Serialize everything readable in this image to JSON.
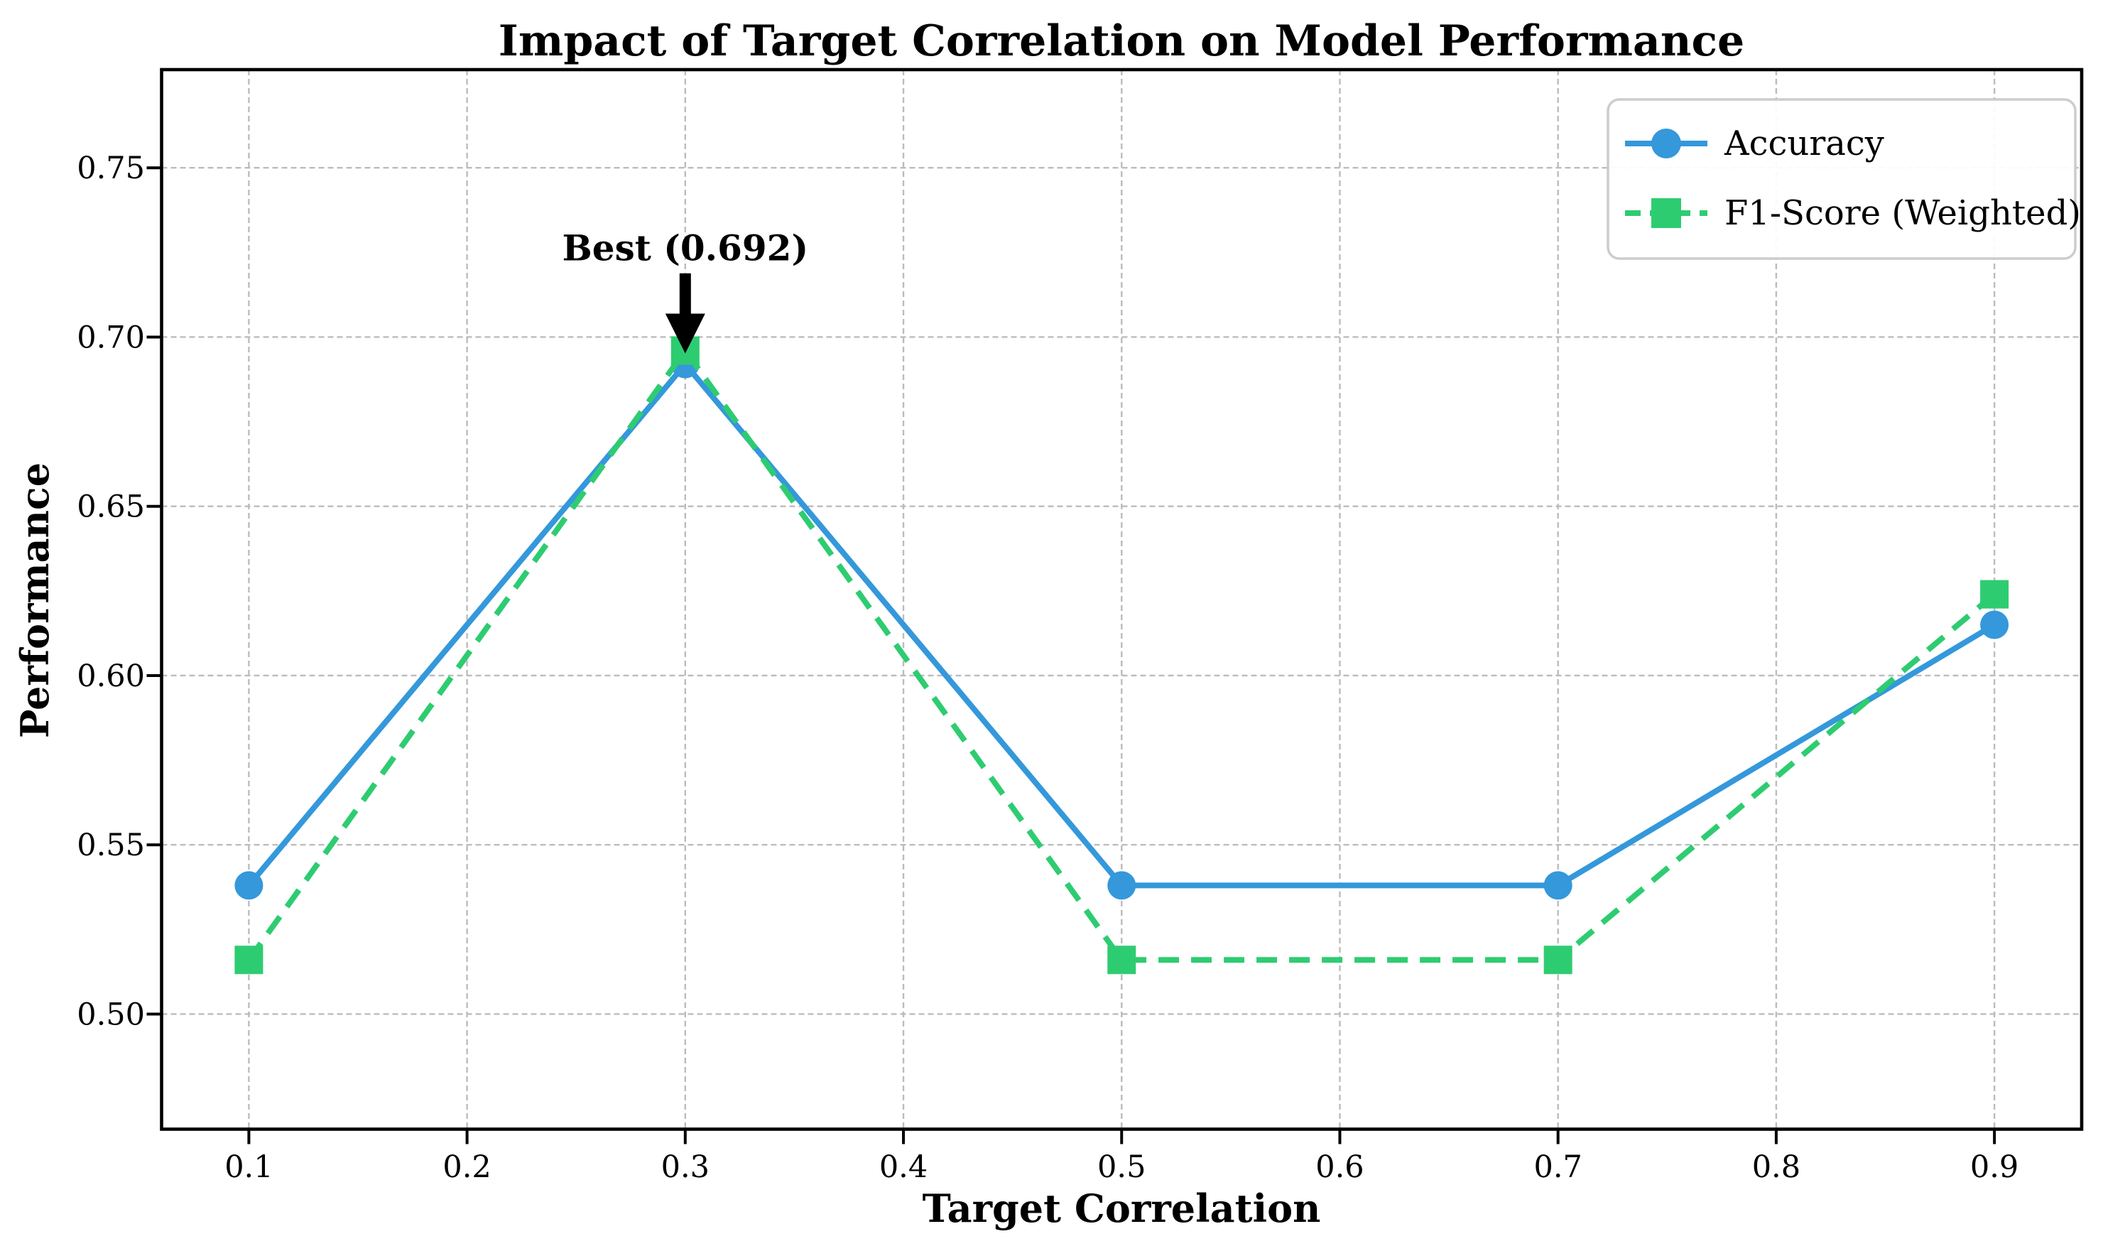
{
  "chart_data": {
    "type": "line",
    "title": "Impact of Target Correlation on Model Performance",
    "xlabel": "Target Correlation",
    "ylabel": "Performance",
    "x": [
      0.1,
      0.3,
      0.5,
      0.7,
      0.9
    ],
    "series": [
      {
        "name": "Accuracy",
        "values": [
          0.538,
          0.692,
          0.538,
          0.538,
          0.615
        ],
        "color": "#3498db",
        "line_style": "solid",
        "marker": "circle"
      },
      {
        "name": "F1-Score (Weighted)",
        "values": [
          0.516,
          0.696,
          0.516,
          0.516,
          0.624
        ],
        "color": "#2ecc71",
        "line_style": "dashed",
        "marker": "square"
      }
    ],
    "xtick_values": [
      0.1,
      0.2,
      0.3,
      0.4,
      0.5,
      0.6,
      0.7,
      0.8,
      0.9
    ],
    "xtick_labels": [
      "0.1",
      "0.2",
      "0.3",
      "0.4",
      "0.5",
      "0.6",
      "0.7",
      "0.8",
      "0.9"
    ],
    "ytick_values": [
      0.5,
      0.55,
      0.6,
      0.65,
      0.7,
      0.75
    ],
    "ytick_labels": [
      "0.50",
      "0.55",
      "0.60",
      "0.65",
      "0.70",
      "0.75"
    ],
    "xlim": [
      0.06,
      0.94
    ],
    "ylim": [
      0.466,
      0.779
    ],
    "grid": true,
    "grid_color": "#bcbcbc",
    "legend_position": "upper right",
    "legend_border_color": "#cccccc",
    "annotation": {
      "text": "Best (0.692)",
      "target_x": 0.3,
      "target_y": 0.696,
      "text_x": 0.3,
      "text_y": 0.731,
      "arrow_color": "#000000"
    }
  }
}
